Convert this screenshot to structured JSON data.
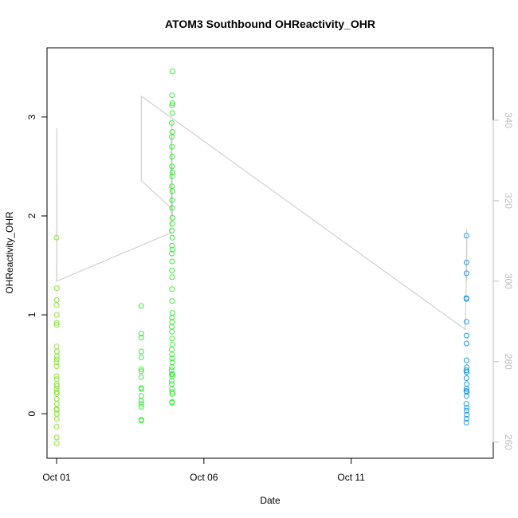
{
  "chart_data": {
    "type": "scatter",
    "title": "ATOM3 Southbound OHReactivity_OHR",
    "xlabel": "Date",
    "ylabel": "OHReactivity_OHR",
    "xlim": [
      "2016-09-30T16:12",
      "2016-10-15T19:48"
    ],
    "ylim": [
      -0.45,
      3.7
    ],
    "y2lim": [
      256,
      358
    ],
    "x_ticks": [
      {
        "label": "Oct 01",
        "value": "2016-10-01T00:00"
      },
      {
        "label": "Oct 06",
        "value": "2016-10-06T00:00"
      },
      {
        "label": "Oct 11",
        "value": "2016-10-11T00:00"
      }
    ],
    "y_ticks": [
      0,
      1,
      2,
      3
    ],
    "y2_ticks": [
      260,
      280,
      300,
      320,
      340
    ],
    "grid": false,
    "colors": {
      "cluster1": "#8be23c",
      "cluster2": "#3ee83e",
      "cluster3": "#1e9ae6",
      "line": "#c8c8c8",
      "right_axis": "#bdbdbd"
    },
    "series": [
      {
        "color": "#8be23c",
        "points": [
          {
            "x": "2016-10-01T00:00",
            "y": 1.78
          },
          {
            "x": "2016-10-01T00:10",
            "y": 1.27
          },
          {
            "x": "2016-10-01T00:05",
            "y": 1.15
          },
          {
            "x": "2016-10-01T00:00",
            "y": 1.1
          },
          {
            "x": "2016-10-01T00:08",
            "y": 1.0
          },
          {
            "x": "2016-10-01T00:00",
            "y": 0.92
          },
          {
            "x": "2016-10-01T00:03",
            "y": 0.9
          },
          {
            "x": "2016-10-01T00:00",
            "y": 0.68
          },
          {
            "x": "2016-10-01T00:10",
            "y": 0.63
          },
          {
            "x": "2016-10-01T00:06",
            "y": 0.58
          },
          {
            "x": "2016-10-01T00:12",
            "y": 0.55
          },
          {
            "x": "2016-10-01T00:00",
            "y": 0.52
          },
          {
            "x": "2016-10-01T00:04",
            "y": 0.48
          },
          {
            "x": "2016-10-01T00:00",
            "y": 0.38
          },
          {
            "x": "2016-10-01T00:08",
            "y": 0.35
          },
          {
            "x": "2016-10-01T00:02",
            "y": 0.3
          },
          {
            "x": "2016-10-01T00:10",
            "y": 0.28
          },
          {
            "x": "2016-10-01T00:00",
            "y": 0.25
          },
          {
            "x": "2016-10-01T00:06",
            "y": 0.22
          },
          {
            "x": "2016-10-01T00:12",
            "y": 0.2
          },
          {
            "x": "2016-10-01T00:03",
            "y": 0.15
          },
          {
            "x": "2016-10-01T00:08",
            "y": 0.1
          },
          {
            "x": "2016-10-01T00:00",
            "y": 0.05
          },
          {
            "x": "2016-10-01T00:10",
            "y": 0.04
          },
          {
            "x": "2016-10-01T00:05",
            "y": 0.0
          },
          {
            "x": "2016-10-01T00:08",
            "y": -0.05
          },
          {
            "x": "2016-10-01T00:00",
            "y": -0.13
          },
          {
            "x": "2016-10-01T00:04",
            "y": -0.24
          },
          {
            "x": "2016-10-01T00:06",
            "y": -0.3
          }
        ]
      },
      {
        "color": "#3ee83e",
        "points": [
          {
            "x": "2016-10-03T21:00",
            "y": 1.09
          },
          {
            "x": "2016-10-03T21:00",
            "y": 0.81
          },
          {
            "x": "2016-10-03T21:00",
            "y": 0.77
          },
          {
            "x": "2016-10-03T21:00",
            "y": 0.63
          },
          {
            "x": "2016-10-03T21:00",
            "y": 0.57
          },
          {
            "x": "2016-10-03T21:00",
            "y": 0.45
          },
          {
            "x": "2016-10-03T21:00",
            "y": 0.43
          },
          {
            "x": "2016-10-03T21:00",
            "y": 0.37
          },
          {
            "x": "2016-10-03T21:00",
            "y": 0.26
          },
          {
            "x": "2016-10-03T21:00",
            "y": 0.25
          },
          {
            "x": "2016-10-03T21:00",
            "y": 0.18
          },
          {
            "x": "2016-10-03T21:00",
            "y": 0.13
          },
          {
            "x": "2016-10-03T21:00",
            "y": 0.1
          },
          {
            "x": "2016-10-03T21:00",
            "y": 0.07
          },
          {
            "x": "2016-10-03T21:00",
            "y": -0.06
          },
          {
            "x": "2016-10-03T21:00",
            "y": -0.07
          },
          {
            "x": "2016-10-04T22:20",
            "y": 3.46
          },
          {
            "x": "2016-10-04T22:10",
            "y": 3.22
          },
          {
            "x": "2016-10-04T22:25",
            "y": 3.14
          },
          {
            "x": "2016-10-04T22:00",
            "y": 3.12
          },
          {
            "x": "2016-10-04T22:20",
            "y": 3.04
          },
          {
            "x": "2016-10-04T21:50",
            "y": 2.94
          },
          {
            "x": "2016-10-04T22:15",
            "y": 2.85
          },
          {
            "x": "2016-10-04T21:50",
            "y": 2.8
          },
          {
            "x": "2016-10-04T22:00",
            "y": 2.7
          },
          {
            "x": "2016-10-04T22:10",
            "y": 2.6
          },
          {
            "x": "2016-10-04T22:00",
            "y": 2.5
          },
          {
            "x": "2016-10-04T22:20",
            "y": 2.44
          },
          {
            "x": "2016-10-04T22:10",
            "y": 2.4
          },
          {
            "x": "2016-10-04T22:00",
            "y": 2.3
          },
          {
            "x": "2016-10-04T22:20",
            "y": 2.25
          },
          {
            "x": "2016-10-04T22:10",
            "y": 2.16
          },
          {
            "x": "2016-10-04T22:00",
            "y": 2.08
          },
          {
            "x": "2016-10-04T22:20",
            "y": 1.98
          },
          {
            "x": "2016-10-04T22:10",
            "y": 1.92
          },
          {
            "x": "2016-10-04T21:50",
            "y": 1.85
          },
          {
            "x": "2016-10-04T22:20",
            "y": 1.78
          },
          {
            "x": "2016-10-04T22:00",
            "y": 1.7
          },
          {
            "x": "2016-10-04T22:20",
            "y": 1.66
          },
          {
            "x": "2016-10-04T21:50",
            "y": 1.62
          },
          {
            "x": "2016-10-04T22:10",
            "y": 1.54
          },
          {
            "x": "2016-10-04T22:00",
            "y": 1.45
          },
          {
            "x": "2016-10-04T22:10",
            "y": 1.38
          },
          {
            "x": "2016-10-04T22:00",
            "y": 1.26
          },
          {
            "x": "2016-10-04T22:10",
            "y": 1.14
          },
          {
            "x": "2016-10-04T22:20",
            "y": 1.02
          },
          {
            "x": "2016-10-04T22:00",
            "y": 0.97
          },
          {
            "x": "2016-10-04T22:10",
            "y": 0.93
          },
          {
            "x": "2016-10-04T21:50",
            "y": 0.88
          },
          {
            "x": "2016-10-04T22:00",
            "y": 0.83
          },
          {
            "x": "2016-10-04T22:10",
            "y": 0.76
          },
          {
            "x": "2016-10-04T22:20",
            "y": 0.7
          },
          {
            "x": "2016-10-04T21:50",
            "y": 0.65
          },
          {
            "x": "2016-10-04T22:00",
            "y": 0.6
          },
          {
            "x": "2016-10-04T22:10",
            "y": 0.56
          },
          {
            "x": "2016-10-04T22:20",
            "y": 0.52
          },
          {
            "x": "2016-10-04T22:00",
            "y": 0.47
          },
          {
            "x": "2016-10-04T21:40",
            "y": 0.44
          },
          {
            "x": "2016-10-04T21:50",
            "y": 0.4
          },
          {
            "x": "2016-10-04T22:10",
            "y": 0.38
          },
          {
            "x": "2016-10-04T22:20",
            "y": 0.4
          },
          {
            "x": "2016-10-04T21:40",
            "y": 0.33
          },
          {
            "x": "2016-10-04T21:50",
            "y": 0.3
          },
          {
            "x": "2016-10-04T22:00",
            "y": 0.25
          },
          {
            "x": "2016-10-04T22:10",
            "y": 0.22
          },
          {
            "x": "2016-10-04T22:20",
            "y": 0.2
          },
          {
            "x": "2016-10-04T22:00",
            "y": 0.12
          },
          {
            "x": "2016-10-04T22:10",
            "y": 0.11
          }
        ]
      },
      {
        "color": "#1e9ae6",
        "points": [
          {
            "x": "2016-10-14T22:00",
            "y": 1.8
          },
          {
            "x": "2016-10-14T22:00",
            "y": 1.53
          },
          {
            "x": "2016-10-14T22:00",
            "y": 1.42
          },
          {
            "x": "2016-10-14T21:50",
            "y": 1.17
          },
          {
            "x": "2016-10-14T22:00",
            "y": 1.16
          },
          {
            "x": "2016-10-14T22:00",
            "y": 0.93
          },
          {
            "x": "2016-10-14T22:00",
            "y": 0.79
          },
          {
            "x": "2016-10-14T22:00",
            "y": 0.71
          },
          {
            "x": "2016-10-14T22:00",
            "y": 0.54
          },
          {
            "x": "2016-10-14T22:10",
            "y": 0.47
          },
          {
            "x": "2016-10-14T21:50",
            "y": 0.44
          },
          {
            "x": "2016-10-14T22:00",
            "y": 0.42
          },
          {
            "x": "2016-10-14T22:10",
            "y": 0.42
          },
          {
            "x": "2016-10-14T22:00",
            "y": 0.36
          },
          {
            "x": "2016-10-14T22:10",
            "y": 0.3
          },
          {
            "x": "2016-10-14T22:00",
            "y": 0.25
          },
          {
            "x": "2016-10-14T21:50",
            "y": 0.23
          },
          {
            "x": "2016-10-14T22:10",
            "y": 0.22
          },
          {
            "x": "2016-10-14T22:00",
            "y": 0.18
          },
          {
            "x": "2016-10-14T21:50",
            "y": 0.1
          },
          {
            "x": "2016-10-14T22:10",
            "y": 0.06
          },
          {
            "x": "2016-10-14T22:00",
            "y": 0.03
          },
          {
            "x": "2016-10-14T22:10",
            "y": -0.01
          },
          {
            "x": "2016-10-14T22:00",
            "y": -0.05
          },
          {
            "x": "2016-10-14T21:50",
            "y": -0.09
          }
        ]
      }
    ],
    "line_series": {
      "axis": "right",
      "color": "#c8c8c8",
      "points": [
        {
          "x": "2016-10-01T00:00",
          "y": 300
        },
        {
          "x": "2016-10-01T00:02",
          "y": 305
        },
        {
          "x": "2016-10-01T00:03",
          "y": 335
        },
        {
          "x": "2016-10-01T00:04",
          "y": 338
        },
        {
          "x": "2016-10-01T00:05",
          "y": 322
        },
        {
          "x": "2016-10-01T00:06",
          "y": 336
        },
        {
          "x": "2016-10-01T00:08",
          "y": 332
        },
        {
          "x": "2016-10-01T00:10",
          "y": 300
        },
        {
          "x": "2016-10-04T21:00",
          "y": 312
        },
        {
          "x": "2016-10-04T21:20",
          "y": 314
        },
        {
          "x": "2016-10-04T21:30",
          "y": 336
        },
        {
          "x": "2016-10-04T21:40",
          "y": 318
        },
        {
          "x": "2016-10-04T22:00",
          "y": 340
        },
        {
          "x": "2016-10-04T22:10",
          "y": 325
        },
        {
          "x": "2016-10-04T22:20",
          "y": 316
        },
        {
          "x": "2016-10-04T22:00",
          "y": 318
        },
        {
          "x": "2016-10-03T21:00",
          "y": 325
        },
        {
          "x": "2016-10-03T21:00",
          "y": 346
        },
        {
          "x": "2016-10-14T21:00",
          "y": 288
        },
        {
          "x": "2016-10-14T21:30",
          "y": 296
        },
        {
          "x": "2016-10-14T21:40",
          "y": 299
        },
        {
          "x": "2016-10-14T21:50",
          "y": 305
        },
        {
          "x": "2016-10-14T22:00",
          "y": 300
        },
        {
          "x": "2016-10-14T22:10",
          "y": 313
        },
        {
          "x": "2016-10-14T22:10",
          "y": 304
        },
        {
          "x": "2016-10-14T22:20",
          "y": 310
        }
      ]
    }
  }
}
